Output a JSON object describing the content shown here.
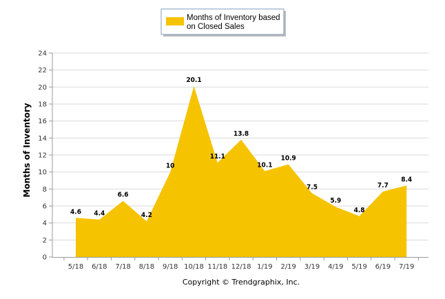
{
  "chart_data": {
    "type": "area",
    "categories": [
      "5/18",
      "6/18",
      "7/18",
      "8/18",
      "9/18",
      "10/18",
      "11/18",
      "12/18",
      "1/19",
      "2/19",
      "3/19",
      "4/19",
      "5/19",
      "6/19",
      "7/19"
    ],
    "series": [
      {
        "name": "Months of Inventory based on Closed Sales",
        "name_lines": [
          "Months of Inventory based",
          "on Closed Sales"
        ],
        "values": [
          4.6,
          4.4,
          6.6,
          4.2,
          10,
          20.1,
          11.1,
          13.8,
          10.1,
          10.9,
          7.5,
          5.9,
          4.8,
          7.7,
          8.4
        ],
        "labels": [
          "4.6",
          "4.4",
          "6.6",
          "4.2",
          "10",
          "20.1",
          "11.1",
          "13.8",
          "10.1",
          "10.9",
          "7.5",
          "5.9",
          "4.8",
          "7.7",
          "8.4"
        ],
        "color": "#F5C300"
      }
    ],
    "ylabel": "Months of Inventory",
    "xlabel": "",
    "ylim": [
      0,
      24
    ],
    "yticks": [
      "0",
      "2",
      "4",
      "6",
      "8",
      "10",
      "12",
      "14",
      "16",
      "18",
      "20",
      "22",
      "24"
    ],
    "grid": true,
    "legend_position": "top-center"
  },
  "footer": {
    "copyright": "Copyright © Trendgraphix, Inc."
  },
  "colors": {
    "area": "#F5C300",
    "grid": "#d9d9d9",
    "axis": "#999999"
  }
}
